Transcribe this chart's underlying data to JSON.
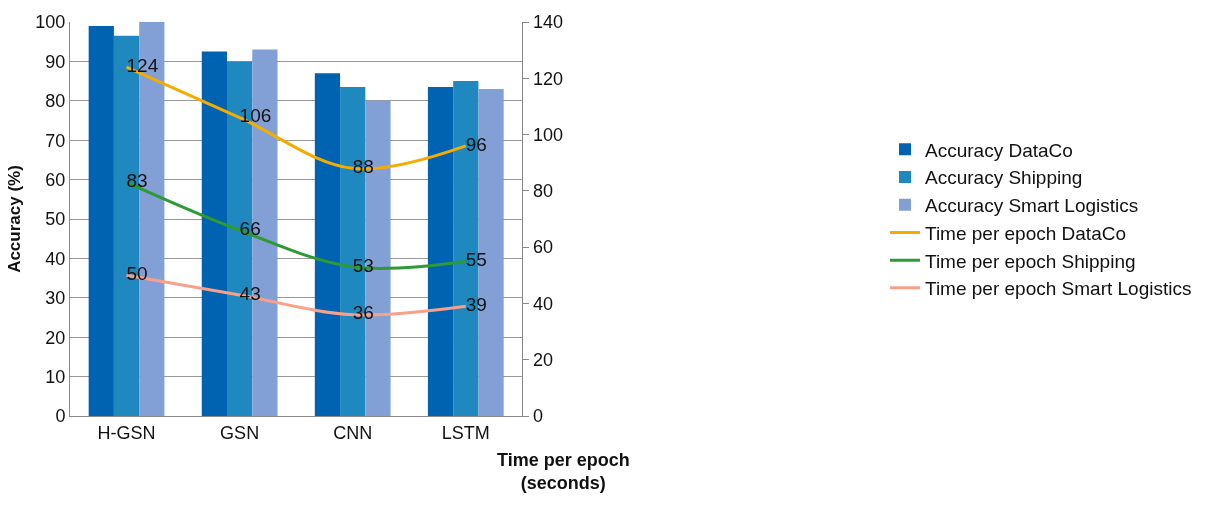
{
  "chart_data": {
    "type": "bar",
    "categories": [
      "H-GSN",
      "GSN",
      "CNN",
      "LSTM"
    ],
    "ylabel": "Accuracy (%)",
    "y2label": "Time per epoch\n(seconds)",
    "ylim": [
      0,
      100
    ],
    "yticks": [
      0,
      10,
      20,
      30,
      40,
      50,
      60,
      70,
      80,
      90,
      100
    ],
    "y2lim": [
      0,
      140
    ],
    "y2ticks": [
      0,
      20,
      40,
      60,
      80,
      100,
      120,
      140
    ],
    "grid": "y",
    "legend": "right",
    "series": [
      {
        "name": "Accuracy DataCo",
        "color": "#0063b1",
        "values": [
          99,
          92.5,
          87,
          83.5
        ]
      },
      {
        "name": "Accuracy Shipping",
        "color": "#1f88bf",
        "values": [
          96.5,
          90,
          83.5,
          85
        ]
      },
      {
        "name": "Accuracy Smart Logistics",
        "color": "#82a0d5",
        "values": [
          100,
          93,
          80,
          83
        ]
      },
      {
        "name": "Time per epoch DataCo",
        "type": "line",
        "axis": "y2",
        "color": "#f5ac00",
        "values": [
          124,
          106,
          88,
          96
        ],
        "value_labels": [
          "124",
          "106",
          "88",
          "96"
        ]
      },
      {
        "name": "Time per epoch Shipping",
        "type": "line",
        "axis": "y2",
        "color": "#2e9a35",
        "values": [
          83,
          66,
          53,
          55
        ],
        "value_labels": [
          "83",
          "66",
          "53",
          "55"
        ]
      },
      {
        "name": "Time per epoch Smart Logistics",
        "type": "line",
        "axis": "y2",
        "color": "#f9a08a",
        "values": [
          50,
          43,
          36,
          39
        ],
        "value_labels": [
          "50",
          "43",
          "36",
          "39"
        ]
      }
    ]
  }
}
